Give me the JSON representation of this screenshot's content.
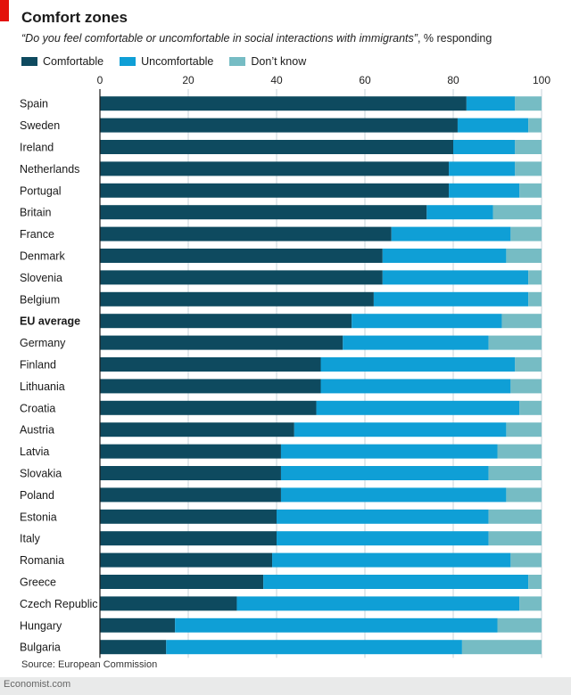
{
  "header": {
    "title": "Comfort zones",
    "subtitle_quote": "“Do you feel comfortable or uncomfortable in social interactions with immigrants”",
    "subtitle_rest": ", % responding"
  },
  "footer": {
    "source": "Source: European Commission",
    "brand": "Economist.com"
  },
  "colors": {
    "comfortable": "#0e4a5f",
    "uncomfortable": "#0f9fd6",
    "dont_know": "#76bcc4"
  },
  "chart_data": {
    "type": "bar",
    "orientation": "horizontal",
    "stacked": true,
    "title": "Comfort zones",
    "subtitle": "“Do you feel comfortable or uncomfortable in social interactions with immigrants”, % responding",
    "xlim": [
      0,
      100
    ],
    "xticks": [
      "0",
      "20",
      "40",
      "60",
      "80",
      "100"
    ],
    "grid": true,
    "legend": "top-left",
    "categories": [
      "Spain",
      "Sweden",
      "Ireland",
      "Netherlands",
      "Portugal",
      "Britain",
      "France",
      "Denmark",
      "Slovenia",
      "Belgium",
      "EU average",
      "Germany",
      "Finland",
      "Lithuania",
      "Croatia",
      "Austria",
      "Latvia",
      "Slovakia",
      "Poland",
      "Estonia",
      "Italy",
      "Romania",
      "Greece",
      "Czech Republic",
      "Hungary",
      "Bulgaria"
    ],
    "highlight": "EU average",
    "series": [
      {
        "name": "Comfortable",
        "values": [
          83,
          81,
          80,
          79,
          79,
          74,
          66,
          64,
          64,
          62,
          57,
          55,
          50,
          50,
          49,
          44,
          41,
          41,
          41,
          40,
          40,
          39,
          37,
          31,
          17,
          15
        ]
      },
      {
        "name": "Uncomfortable",
        "values": [
          11,
          16,
          14,
          15,
          16,
          15,
          27,
          28,
          33,
          35,
          34,
          33,
          44,
          43,
          46,
          48,
          49,
          47,
          51,
          48,
          48,
          54,
          60,
          64,
          73,
          67
        ]
      },
      {
        "name": "Don’t know",
        "values": [
          6,
          3,
          6,
          6,
          5,
          11,
          7,
          8,
          3,
          3,
          9,
          12,
          6,
          7,
          5,
          8,
          10,
          12,
          8,
          12,
          12,
          7,
          3,
          5,
          10,
          18
        ]
      }
    ]
  }
}
